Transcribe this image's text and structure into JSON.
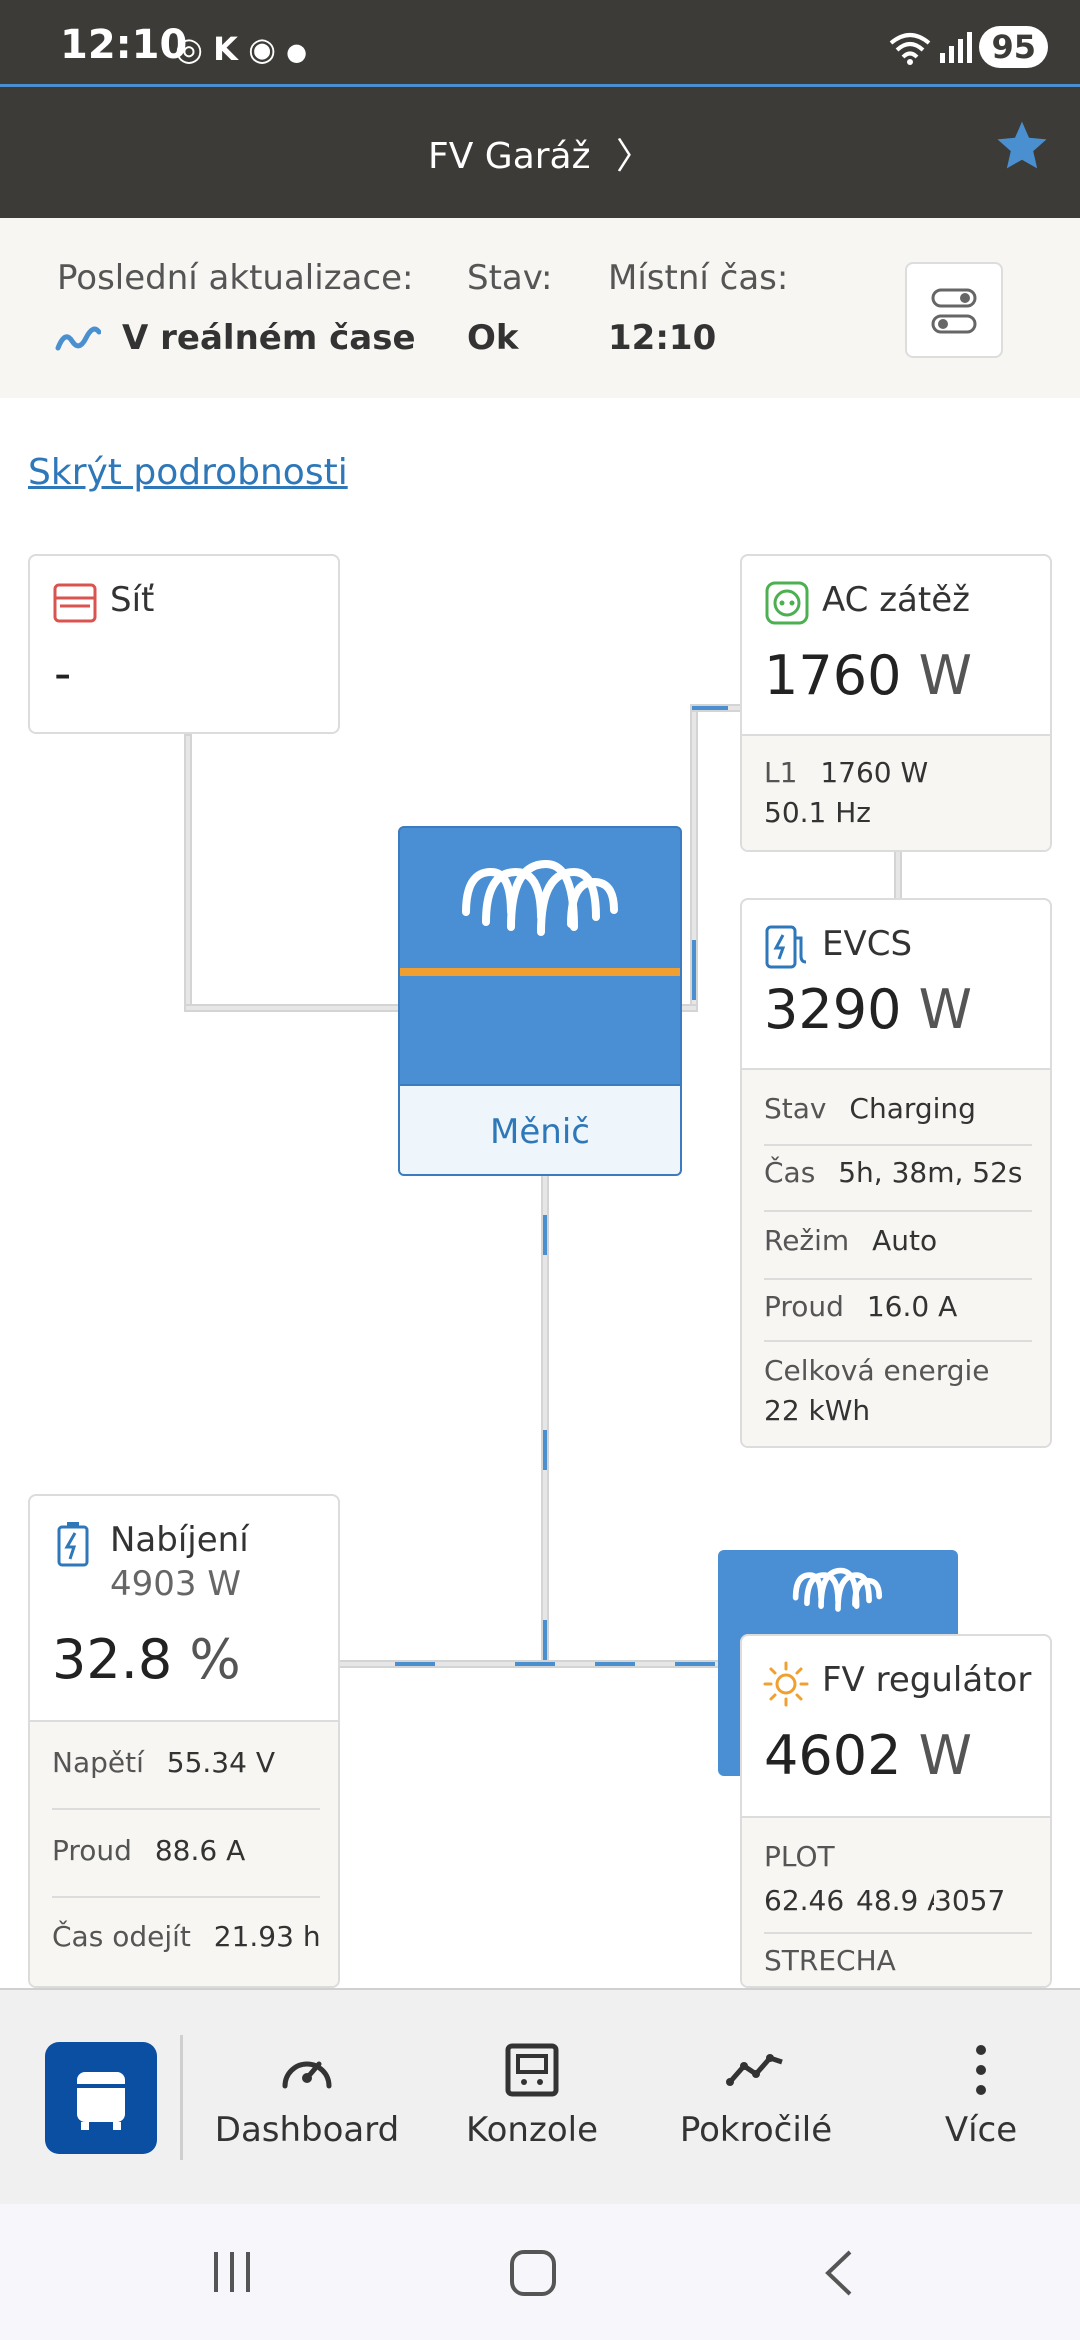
{
  "status_bar": {
    "time": "12:10",
    "battery": "95"
  },
  "header": {
    "title": "FV Garáž"
  },
  "info": {
    "last_update_label": "Poslední aktualizace:",
    "last_update_value": "V reálném čase",
    "state_label": "Stav:",
    "state_value": "Ok",
    "local_time_label": "Místní čas:",
    "local_time_value": "12:10"
  },
  "hide_details": "Skrýt podrobnosti",
  "grid": {
    "title": "Síť",
    "value": "-"
  },
  "ac_load": {
    "title": "AC zátěž",
    "value": "1760",
    "unit": "W",
    "l1_label": "L1",
    "l1_value": "1760 W",
    "freq": "50.1 Hz"
  },
  "evcs": {
    "title": "EVCS",
    "value": "3290",
    "unit": "W",
    "rows": [
      {
        "label": "Stav",
        "value": "Charging"
      },
      {
        "label": "Čas",
        "value": "5h, 38m, 52s"
      },
      {
        "label": "Režim",
        "value": "Auto"
      },
      {
        "label": "Proud",
        "value": "16.0 A"
      }
    ],
    "total_label": "Celková energie",
    "total_value": "22 kWh"
  },
  "inverter": {
    "label": "Měnič"
  },
  "battery": {
    "title": "Nabíjení",
    "power": "4903 W",
    "value": "32.8",
    "unit": "%",
    "rows": [
      {
        "label": "Napětí",
        "value": "55.34 V"
      },
      {
        "label": "Proud",
        "value": "88.6 A"
      },
      {
        "label": "Čas odejít",
        "value": "21.93 h"
      }
    ]
  },
  "pv": {
    "title": "FV regulátor",
    "value": "4602",
    "unit": "W",
    "plot_label": "PLOT",
    "plot_values": [
      "62.46",
      "48.9 A",
      "3057"
    ],
    "strecha_label": "STRECHA"
  },
  "nav": {
    "dashboard": "Dashboard",
    "console": "Konzole",
    "advanced": "Pokročilé",
    "more": "Více"
  },
  "colors": {
    "header": "#3d3b38",
    "accent": "#4a90d0",
    "link": "#2e77b8",
    "nav_active": "#0b4fa3",
    "orange": "#f0a030"
  }
}
